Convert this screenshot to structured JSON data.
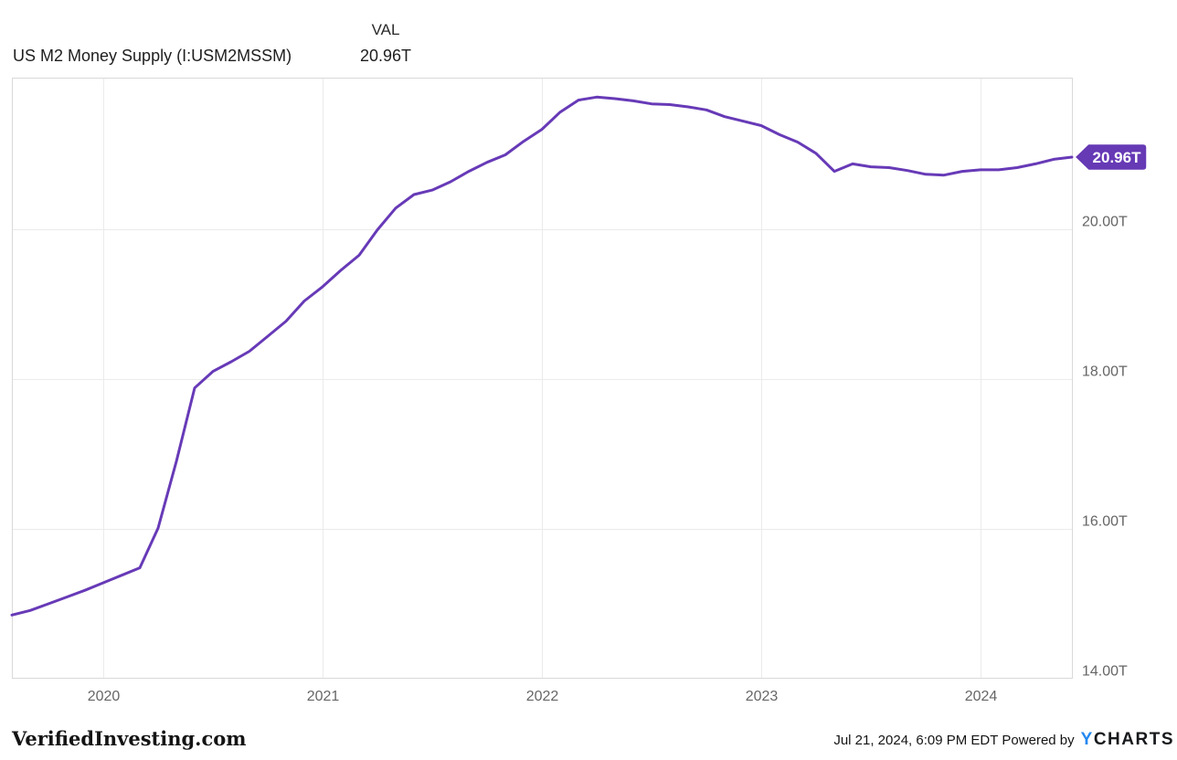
{
  "header": {
    "title": "US M2 Money Supply (I:USM2MSSM)",
    "val_label": "VAL",
    "val_value": "20.96T"
  },
  "chart_data": {
    "type": "line",
    "title": "US M2 Money Supply (I:USM2MSSM)",
    "unit": "trillions USD",
    "grid": true,
    "legend_position": "none",
    "x": [
      "2019-07",
      "2019-08",
      "2019-09",
      "2019-10",
      "2019-11",
      "2019-12",
      "2020-01",
      "2020-02",
      "2020-03",
      "2020-04",
      "2020-05",
      "2020-06",
      "2020-07",
      "2020-08",
      "2020-09",
      "2020-10",
      "2020-11",
      "2020-12",
      "2021-01",
      "2021-02",
      "2021-03",
      "2021-04",
      "2021-05",
      "2021-06",
      "2021-07",
      "2021-08",
      "2021-09",
      "2021-10",
      "2021-11",
      "2021-12",
      "2022-01",
      "2022-02",
      "2022-03",
      "2022-04",
      "2022-05",
      "2022-06",
      "2022-07",
      "2022-08",
      "2022-09",
      "2022-10",
      "2022-11",
      "2022-12",
      "2023-01",
      "2023-02",
      "2023-03",
      "2023-04",
      "2023-05",
      "2023-06",
      "2023-07",
      "2023-08",
      "2023-09",
      "2023-10",
      "2023-11",
      "2023-12",
      "2024-01",
      "2024-02",
      "2024-03",
      "2024-04",
      "2024-05"
    ],
    "series": [
      {
        "name": "US M2 Money Supply",
        "values": [
          14.85,
          14.91,
          15.0,
          15.09,
          15.18,
          15.28,
          15.38,
          15.48,
          16.01,
          16.9,
          17.88,
          18.1,
          18.23,
          18.37,
          18.57,
          18.77,
          19.04,
          19.23,
          19.45,
          19.65,
          19.99,
          20.28,
          20.46,
          20.52,
          20.63,
          20.77,
          20.89,
          20.99,
          21.17,
          21.33,
          21.56,
          21.72,
          21.76,
          21.74,
          21.71,
          21.67,
          21.66,
          21.63,
          21.59,
          21.5,
          21.44,
          21.38,
          21.26,
          21.16,
          21.01,
          20.77,
          20.87,
          20.83,
          20.82,
          20.78,
          20.73,
          20.72,
          20.77,
          20.79,
          20.79,
          20.82,
          20.87,
          20.93,
          20.96
        ]
      }
    ],
    "x_ticks": {
      "labels": [
        "2020",
        "2021",
        "2022",
        "2023",
        "2024"
      ]
    },
    "y_ticks": {
      "labels": [
        "14.00T",
        "16.00T",
        "18.00T",
        "20.00T"
      ],
      "values": [
        14,
        16,
        18,
        20
      ]
    },
    "ylim": [
      14,
      22.02
    ],
    "last_value_label": "20.96T"
  },
  "footer": {
    "brand": "VerifiedInvesting.com",
    "timestamp": "Jul 21, 2024, 6:09 PM EDT",
    "powered_by": "Powered by",
    "logo_y": "Y",
    "logo_charts": "CHARTS"
  },
  "colors": {
    "line": "#673AB7",
    "badge_bg": "#6639B5",
    "badge_text": "#FFFFFF",
    "grid": "#EBEBEB",
    "plot_border": "#D9D9D9",
    "axis_label": "#666666",
    "title_text": "#1E1E1E",
    "footer_text": "#141414",
    "ycharts_y_blue": "#2388F0",
    "ycharts_charts": "#17191C",
    "background": "#FFFFFF"
  }
}
